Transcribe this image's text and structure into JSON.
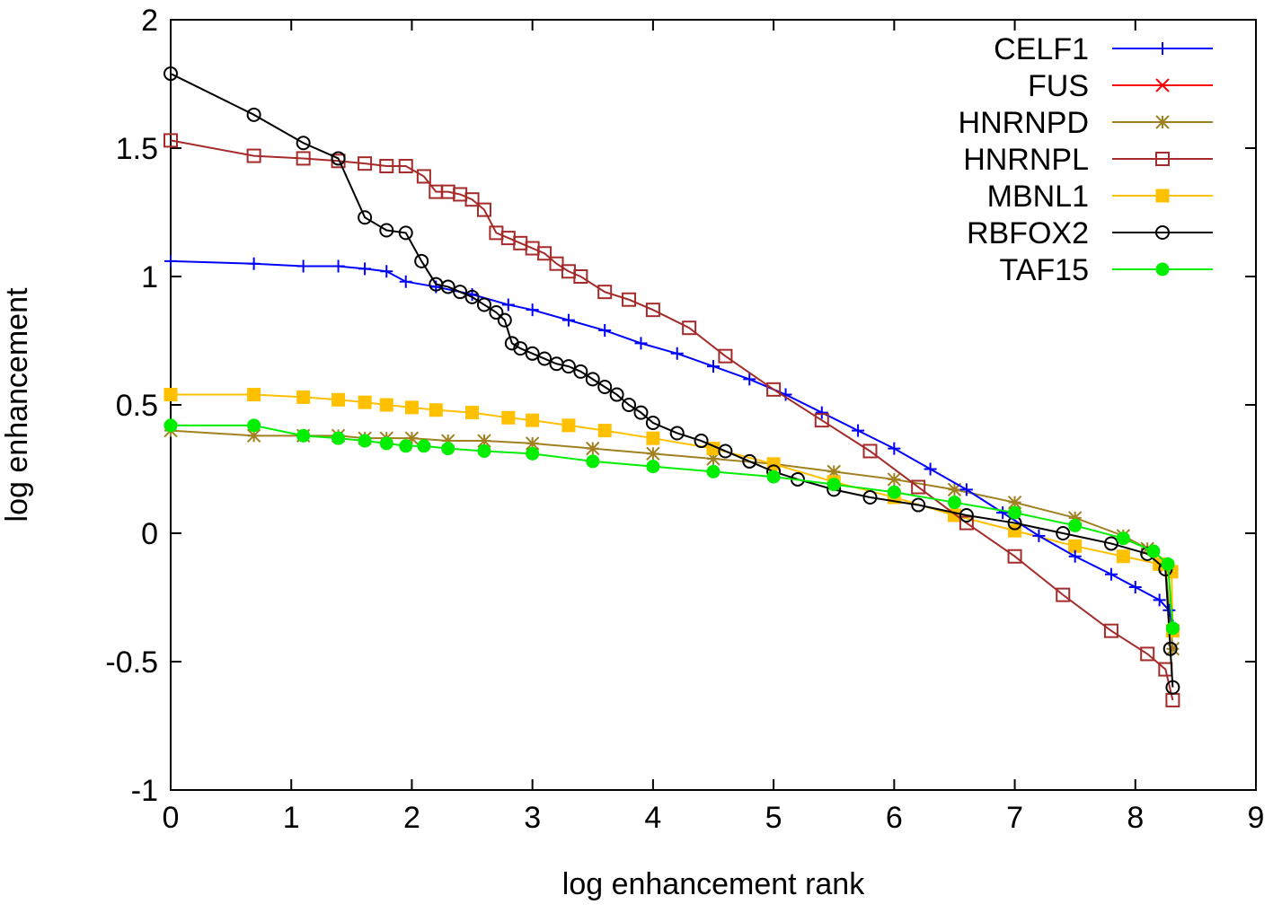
{
  "chart_data": {
    "type": "line",
    "title": "",
    "xlabel": "log enhancement rank",
    "ylabel": "log enhancement",
    "xlim": [
      0,
      9
    ],
    "ylim": [
      -1,
      2
    ],
    "xticks": [
      0,
      1,
      2,
      3,
      4,
      5,
      6,
      7,
      8,
      9
    ],
    "yticks": [
      -1,
      -0.5,
      0,
      0.5,
      1,
      1.5,
      2
    ],
    "xtick_labels": [
      "0",
      "1",
      "2",
      "3",
      "4",
      "5",
      "6",
      "7",
      "8",
      "9"
    ],
    "ytick_labels": [
      "-1",
      "-0.5",
      "0",
      "0.5",
      "1",
      "1.5",
      "2"
    ],
    "grid": false,
    "legend_position": "top-right",
    "series": [
      {
        "name": "CELF1",
        "color": "#0000ff",
        "marker": "plus",
        "x": [
          0,
          0.69,
          1.1,
          1.39,
          1.61,
          1.79,
          1.95,
          2.2,
          2.5,
          2.8,
          3.0,
          3.3,
          3.6,
          3.9,
          4.2,
          4.5,
          4.8,
          5.1,
          5.4,
          5.7,
          6.0,
          6.3,
          6.6,
          6.9,
          7.2,
          7.5,
          7.8,
          8.0,
          8.2,
          8.28,
          8.31
        ],
        "y": [
          1.06,
          1.05,
          1.04,
          1.04,
          1.03,
          1.02,
          0.98,
          0.96,
          0.93,
          0.89,
          0.87,
          0.83,
          0.79,
          0.74,
          0.7,
          0.65,
          0.6,
          0.54,
          0.47,
          0.4,
          0.33,
          0.25,
          0.17,
          0.08,
          -0.01,
          -0.09,
          -0.16,
          -0.21,
          -0.26,
          -0.3,
          -0.36
        ]
      },
      {
        "name": "FUS",
        "color": "#ff0000",
        "marker": "cross",
        "x": [],
        "y": []
      },
      {
        "name": "HNRNPD",
        "color": "#a08020",
        "marker": "star",
        "x": [
          0,
          0.69,
          1.1,
          1.39,
          1.61,
          1.79,
          2.0,
          2.3,
          2.6,
          3.0,
          3.5,
          4.0,
          4.5,
          5.0,
          5.5,
          6.0,
          6.5,
          7.0,
          7.5,
          7.9,
          8.1,
          8.25,
          8.31
        ],
        "y": [
          0.4,
          0.38,
          0.38,
          0.38,
          0.37,
          0.37,
          0.37,
          0.36,
          0.36,
          0.35,
          0.33,
          0.31,
          0.29,
          0.27,
          0.24,
          0.21,
          0.17,
          0.12,
          0.06,
          -0.01,
          -0.06,
          -0.13,
          -0.45
        ]
      },
      {
        "name": "HNRNPL",
        "color": "#a52a2a",
        "marker": "open-square",
        "x": [
          0,
          0.69,
          1.1,
          1.39,
          1.61,
          1.79,
          1.95,
          2.1,
          2.2,
          2.3,
          2.4,
          2.5,
          2.6,
          2.7,
          2.8,
          2.9,
          3.0,
          3.1,
          3.2,
          3.3,
          3.4,
          3.6,
          3.8,
          4.0,
          4.3,
          4.6,
          5.0,
          5.4,
          5.8,
          6.2,
          6.6,
          7.0,
          7.4,
          7.8,
          8.1,
          8.25,
          8.31
        ],
        "y": [
          1.53,
          1.47,
          1.46,
          1.45,
          1.44,
          1.43,
          1.43,
          1.39,
          1.33,
          1.33,
          1.32,
          1.3,
          1.26,
          1.17,
          1.15,
          1.13,
          1.11,
          1.09,
          1.05,
          1.02,
          1.0,
          0.94,
          0.91,
          0.87,
          0.8,
          0.69,
          0.56,
          0.44,
          0.32,
          0.18,
          0.04,
          -0.09,
          -0.24,
          -0.38,
          -0.47,
          -0.53,
          -0.65
        ]
      },
      {
        "name": "MBNL1",
        "color": "#ffc000",
        "marker": "filled-square",
        "x": [
          0,
          0.69,
          1.1,
          1.39,
          1.61,
          1.79,
          2.0,
          2.2,
          2.5,
          2.8,
          3.0,
          3.3,
          3.6,
          4.0,
          4.5,
          5.0,
          5.5,
          6.0,
          6.5,
          7.0,
          7.5,
          7.9,
          8.2,
          8.3,
          8.31
        ],
        "y": [
          0.54,
          0.54,
          0.53,
          0.52,
          0.51,
          0.5,
          0.49,
          0.48,
          0.47,
          0.45,
          0.44,
          0.42,
          0.4,
          0.37,
          0.33,
          0.27,
          0.2,
          0.14,
          0.07,
          0.01,
          -0.05,
          -0.09,
          -0.12,
          -0.15,
          -0.38
        ]
      },
      {
        "name": "RBFOX2",
        "color": "#000000",
        "marker": "open-circle",
        "x": [
          0,
          0.69,
          1.1,
          1.39,
          1.61,
          1.79,
          1.95,
          2.08,
          2.2,
          2.3,
          2.4,
          2.5,
          2.6,
          2.7,
          2.77,
          2.83,
          2.9,
          3.0,
          3.1,
          3.2,
          3.3,
          3.4,
          3.5,
          3.6,
          3.7,
          3.8,
          3.9,
          4.0,
          4.2,
          4.4,
          4.6,
          4.8,
          5.0,
          5.2,
          5.5,
          5.8,
          6.2,
          6.6,
          7.0,
          7.4,
          7.8,
          8.1,
          8.25,
          8.29,
          8.31
        ],
        "y": [
          1.79,
          1.63,
          1.52,
          1.46,
          1.23,
          1.18,
          1.17,
          1.06,
          0.97,
          0.96,
          0.94,
          0.92,
          0.89,
          0.86,
          0.83,
          0.74,
          0.72,
          0.7,
          0.68,
          0.66,
          0.65,
          0.63,
          0.6,
          0.57,
          0.54,
          0.5,
          0.47,
          0.43,
          0.39,
          0.36,
          0.32,
          0.28,
          0.24,
          0.21,
          0.17,
          0.14,
          0.11,
          0.07,
          0.04,
          0.0,
          -0.04,
          -0.08,
          -0.14,
          -0.45,
          -0.6
        ]
      },
      {
        "name": "TAF15",
        "color": "#00ee00",
        "marker": "filled-circle",
        "x": [
          0,
          0.69,
          1.1,
          1.39,
          1.61,
          1.79,
          1.95,
          2.1,
          2.3,
          2.6,
          3.0,
          3.5,
          4.0,
          4.5,
          5.0,
          5.5,
          6.0,
          6.5,
          7.0,
          7.5,
          7.9,
          8.15,
          8.27,
          8.31
        ],
        "y": [
          0.42,
          0.42,
          0.38,
          0.37,
          0.36,
          0.35,
          0.34,
          0.34,
          0.33,
          0.32,
          0.31,
          0.28,
          0.26,
          0.24,
          0.22,
          0.19,
          0.16,
          0.12,
          0.08,
          0.03,
          -0.02,
          -0.07,
          -0.12,
          -0.37
        ]
      }
    ]
  }
}
